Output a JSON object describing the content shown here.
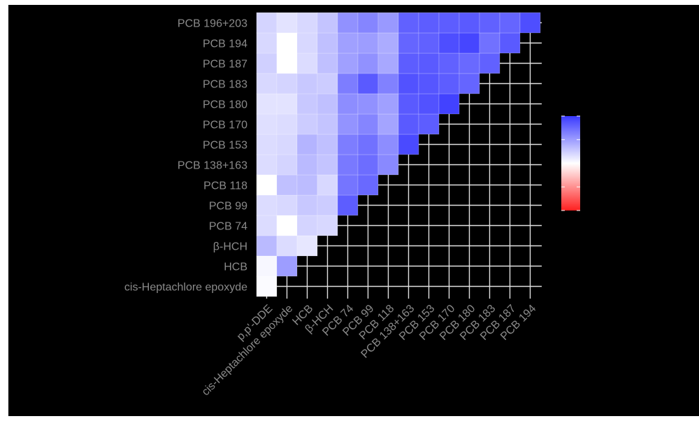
{
  "chart_data": {
    "type": "heatmap",
    "title": "",
    "xlabel": "",
    "ylabel": "",
    "x_labels": [
      "p,p'-DDE",
      "cis-Heptachlore epoxyde",
      "HCB",
      "β-HCH",
      "PCB 74",
      "PCB 99",
      "PCB 118",
      "PCB 138+163",
      "PCB 153",
      "PCB 170",
      "PCB 180",
      "PCB 183",
      "PCB 187",
      "PCB 194"
    ],
    "y_labels": [
      "cis-Heptachlore epoxyde",
      "HCB",
      "β-HCH",
      "PCB 74",
      "PCB 99",
      "PCB 118",
      "PCB 138+163",
      "PCB 153",
      "PCB 170",
      "PCB 180",
      "PCB 183",
      "PCB 187",
      "PCB 194",
      "PCB 196+203"
    ],
    "value_range": [
      -1,
      1
    ],
    "grid": true,
    "legend": {
      "type": "colorbar",
      "placement": "right",
      "colors": [
        "#ff2020",
        "#ffffff",
        "#3a3aff"
      ]
    },
    "values": [
      [
        0.02
      ],
      [
        0.04,
        0.5
      ],
      [
        0.35,
        0.18,
        0.12
      ],
      [
        0.18,
        0.0,
        0.22,
        0.2
      ],
      [
        0.18,
        0.2,
        0.28,
        0.26,
        0.82
      ],
      [
        0.0,
        0.32,
        0.34,
        0.2,
        0.7,
        0.76
      ],
      [
        0.18,
        0.22,
        0.35,
        0.3,
        0.68,
        0.74,
        0.6
      ],
      [
        0.18,
        0.2,
        0.38,
        0.32,
        0.66,
        0.72,
        0.58,
        0.92
      ],
      [
        0.16,
        0.18,
        0.26,
        0.3,
        0.55,
        0.62,
        0.46,
        0.84,
        0.82
      ],
      [
        0.14,
        0.14,
        0.28,
        0.32,
        0.58,
        0.56,
        0.48,
        0.84,
        0.88,
        0.96
      ],
      [
        0.2,
        0.22,
        0.28,
        0.26,
        0.66,
        0.84,
        0.64,
        0.88,
        0.86,
        0.82,
        0.78
      ],
      [
        0.24,
        0.0,
        0.18,
        0.32,
        0.48,
        0.56,
        0.44,
        0.82,
        0.84,
        0.8,
        0.76,
        0.8
      ],
      [
        0.2,
        0.0,
        0.2,
        0.32,
        0.48,
        0.5,
        0.42,
        0.78,
        0.8,
        0.9,
        0.94,
        0.72,
        0.84
      ],
      [
        0.22,
        0.14,
        0.2,
        0.3,
        0.56,
        0.62,
        0.52,
        0.8,
        0.82,
        0.82,
        0.84,
        0.8,
        0.78,
        0.9
      ]
    ]
  }
}
